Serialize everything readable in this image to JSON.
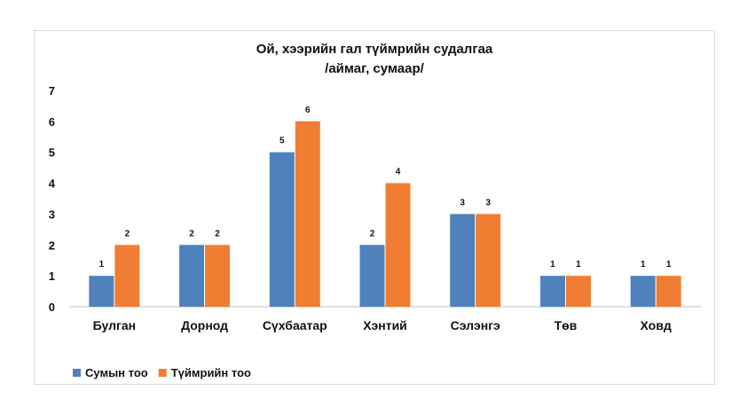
{
  "chart_data": {
    "type": "bar",
    "title": "Ой, хээрийн гал түймрийн судалгаа",
    "subtitle": "/аймаг, сумаар/",
    "categories": [
      "Булган",
      "Дорнод",
      "Сүхбаатар",
      "Хэнтий",
      "Сэлэнгэ",
      "Төв",
      "Ховд"
    ],
    "series": [
      {
        "name": "Сумын тоо",
        "color": "#4f81bd",
        "values": [
          1,
          2,
          5,
          2,
          3,
          1,
          1
        ]
      },
      {
        "name": "Түймрийн тоо",
        "color": "#f07d32",
        "values": [
          2,
          2,
          6,
          4,
          3,
          1,
          1
        ]
      }
    ],
    "ylim": [
      0,
      7
    ],
    "yticks": [
      "0",
      "1",
      "2",
      "3",
      "4",
      "5",
      "6",
      "7"
    ],
    "grid": false,
    "legend_position": "bottom-left",
    "data_labels": true
  }
}
